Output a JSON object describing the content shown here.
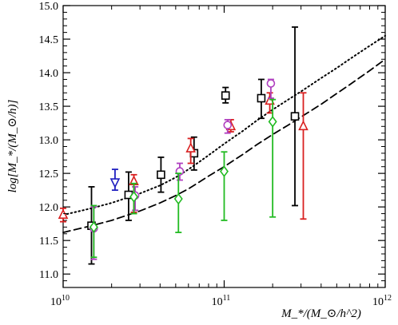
{
  "chart_data": {
    "type": "scatter",
    "xlabel": "M_*/(M_⊙/h^2)",
    "ylabel": "log[M_*/(M_⊙/h)]",
    "x_scale": "log",
    "xlim": [
      10000000000.0,
      1000000000000.0
    ],
    "ylim": [
      10.8,
      15.0
    ],
    "x_tick_exponents": [
      10,
      11,
      12
    ],
    "x_tick_labels": [
      "10",
      "10",
      "10"
    ],
    "x_tick_superscripts": [
      "10",
      "11",
      "12"
    ],
    "y_ticks": [
      11.0,
      11.5,
      12.0,
      12.5,
      13.0,
      13.5,
      14.0,
      14.5,
      15.0
    ],
    "y_tick_labels": [
      "11.0",
      "11.5",
      "12.0",
      "12.5",
      "13.0",
      "13.5",
      "14.0",
      "14.5",
      "15.0"
    ],
    "lines": [
      {
        "style": "dotted",
        "color": "#000000",
        "x": [
          10000000000.0,
          15000000000.0,
          20000000000.0,
          30000000000.0,
          40000000000.0,
          50000000000.0,
          60000000000.0,
          70000000000.0,
          80000000000.0,
          100000000000.0,
          130000000000.0,
          160000000000.0,
          200000000000.0,
          250000000000.0,
          300000000000.0,
          400000000000.0,
          500000000000.0,
          600000000000.0,
          800000000000.0,
          1000000000000.0
        ],
        "y": [
          11.88,
          11.98,
          12.06,
          12.2,
          12.32,
          12.44,
          12.56,
          12.67,
          12.77,
          12.94,
          13.13,
          13.29,
          13.45,
          13.6,
          13.72,
          13.92,
          14.07,
          14.2,
          14.4,
          14.55
        ]
      },
      {
        "style": "dashed",
        "color": "#000000",
        "x": [
          10000000000.0,
          15000000000.0,
          20000000000.0,
          30000000000.0,
          40000000000.0,
          50000000000.0,
          60000000000.0,
          70000000000.0,
          80000000000.0,
          100000000000.0,
          130000000000.0,
          160000000000.0,
          200000000000.0,
          250000000000.0,
          300000000000.0,
          400000000000.0,
          500000000000.0,
          600000000000.0,
          800000000000.0,
          1000000000000.0
        ],
        "y": [
          11.62,
          11.72,
          11.8,
          11.94,
          12.06,
          12.17,
          12.27,
          12.37,
          12.46,
          12.6,
          12.78,
          12.93,
          13.08,
          13.22,
          13.34,
          13.53,
          13.69,
          13.82,
          14.03,
          14.2
        ]
      }
    ],
    "series": [
      {
        "marker": "square",
        "color": "#000000",
        "points": [
          {
            "x": 15000000000.0,
            "y": 11.72,
            "lo": 11.15,
            "hi": 12.3
          },
          {
            "x": 25500000000.0,
            "y": 12.18,
            "lo": 11.8,
            "hi": 12.52
          },
          {
            "x": 40500000000.0,
            "y": 12.48,
            "lo": 12.22,
            "hi": 12.74
          },
          {
            "x": 65000000000.0,
            "y": 12.8,
            "lo": 12.55,
            "hi": 13.04
          },
          {
            "x": 102000000000.0,
            "y": 13.66,
            "lo": 13.55,
            "hi": 13.78
          },
          {
            "x": 170000000000.0,
            "y": 13.62,
            "lo": 13.32,
            "hi": 13.9
          },
          {
            "x": 275000000000.0,
            "y": 13.35,
            "lo": 12.02,
            "hi": 14.68
          }
        ]
      },
      {
        "marker": "triangle-up",
        "color": "#d92020",
        "points": [
          {
            "x": 10000000000.0,
            "y": 11.88,
            "lo": 11.78,
            "hi": 11.98
          },
          {
            "x": 27500000000.0,
            "y": 12.38,
            "lo": 11.92,
            "hi": 12.48
          },
          {
            "x": 62000000000.0,
            "y": 12.87,
            "lo": 12.65,
            "hi": 13.02
          },
          {
            "x": 110000000000.0,
            "y": 13.2,
            "lo": 13.12,
            "hi": 13.3
          },
          {
            "x": 192000000000.0,
            "y": 13.58,
            "lo": 13.4,
            "hi": 13.7
          },
          {
            "x": 310000000000.0,
            "y": 13.2,
            "lo": 11.82,
            "hi": 13.7
          }
        ]
      },
      {
        "marker": "circle",
        "color": "#b040c0",
        "points": [
          {
            "x": 15500000000.0,
            "y": 11.68,
            "lo": 11.22,
            "hi": 12.0
          },
          {
            "x": 28000000000.0,
            "y": 12.17,
            "lo": 11.95,
            "hi": 12.3
          },
          {
            "x": 53000000000.0,
            "y": 12.53,
            "lo": 12.4,
            "hi": 12.65
          },
          {
            "x": 105000000000.0,
            "y": 13.22,
            "lo": 13.1,
            "hi": 13.3
          },
          {
            "x": 195000000000.0,
            "y": 13.84,
            "lo": 13.62,
            "hi": 13.9
          }
        ]
      },
      {
        "marker": "diamond",
        "color": "#22bb22",
        "points": [
          {
            "x": 15500000000.0,
            "y": 11.7,
            "lo": 11.25,
            "hi": 12.02
          },
          {
            "x": 27500000000.0,
            "y": 12.15,
            "lo": 11.9,
            "hi": 12.35
          },
          {
            "x": 52000000000.0,
            "y": 12.12,
            "lo": 11.62,
            "hi": 12.5
          },
          {
            "x": 100000000000.0,
            "y": 12.53,
            "lo": 11.8,
            "hi": 12.82
          },
          {
            "x": 200000000000.0,
            "y": 13.27,
            "lo": 11.85,
            "hi": 13.6
          }
        ]
      },
      {
        "marker": "triangle-down",
        "color": "#2020c0",
        "points": [
          {
            "x": 21000000000.0,
            "y": 12.37,
            "lo": 12.25,
            "hi": 12.56
          }
        ]
      }
    ]
  }
}
